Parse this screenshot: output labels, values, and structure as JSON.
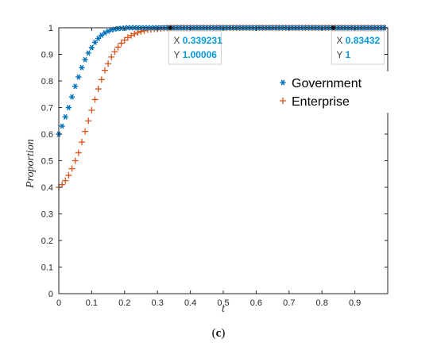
{
  "chart_data": {
    "type": "scatter",
    "xlabel": "t",
    "ylabel": "Proportion",
    "xlim": [
      0,
      1
    ],
    "ylim": [
      0,
      1
    ],
    "xticks": [
      "0",
      "0.1",
      "0.2",
      "0.3",
      "0.4",
      "0.5",
      "0.6",
      "0.7",
      "0.8",
      "0.9"
    ],
    "yticks": [
      "0",
      "0.1",
      "0.2",
      "0.3",
      "0.4",
      "0.5",
      "0.6",
      "0.7",
      "0.8",
      "0.9",
      "1"
    ],
    "grid": false,
    "legend_position": "top-right",
    "series": [
      {
        "name": "Government",
        "marker": "asterisk",
        "color": "#0072BD",
        "x": [
          0,
          0.01,
          0.02,
          0.03,
          0.04,
          0.05,
          0.06,
          0.07,
          0.08,
          0.09,
          0.1,
          0.11,
          0.12,
          0.13,
          0.14,
          0.15,
          0.16,
          0.17,
          0.18,
          0.19,
          0.2,
          0.21,
          0.22,
          0.23,
          0.24,
          0.25,
          0.26,
          0.27,
          0.28,
          0.29,
          0.3,
          0.31,
          0.32,
          0.33,
          0.34,
          0.35,
          0.36,
          0.37,
          0.38,
          0.39,
          0.4,
          0.41,
          0.42,
          0.43,
          0.44,
          0.45,
          0.46,
          0.47,
          0.48,
          0.49,
          0.5,
          0.51,
          0.52,
          0.53,
          0.54,
          0.55,
          0.56,
          0.57,
          0.58,
          0.59,
          0.6,
          0.61,
          0.62,
          0.63,
          0.64,
          0.65,
          0.66,
          0.67,
          0.68,
          0.69,
          0.7,
          0.71,
          0.72,
          0.73,
          0.74,
          0.75,
          0.76,
          0.77,
          0.78,
          0.79,
          0.8,
          0.81,
          0.82,
          0.83,
          0.84,
          0.85,
          0.86,
          0.87,
          0.88,
          0.89,
          0.9,
          0.91,
          0.92,
          0.93,
          0.94,
          0.95,
          0.96,
          0.97,
          0.98,
          0.99
        ],
        "y": [
          0.6,
          0.63,
          0.665,
          0.7,
          0.74,
          0.78,
          0.815,
          0.85,
          0.88,
          0.905,
          0.925,
          0.945,
          0.96,
          0.972,
          0.981,
          0.987,
          0.992,
          0.995,
          0.997,
          0.998,
          0.999,
          1,
          1,
          1,
          1,
          1,
          1,
          1,
          1,
          1,
          1,
          1,
          1,
          1,
          1,
          1,
          1,
          1,
          1,
          1,
          1,
          1,
          1,
          1,
          1,
          1,
          1,
          1,
          1,
          1,
          1,
          1,
          1,
          1,
          1,
          1,
          1,
          1,
          1,
          1,
          1,
          1,
          1,
          1,
          1,
          1,
          1,
          1,
          1,
          1,
          1,
          1,
          1,
          1,
          1,
          1,
          1,
          1,
          1,
          1,
          1,
          1,
          1,
          1,
          1,
          1,
          1,
          1,
          1,
          1,
          1,
          1,
          1,
          1,
          1,
          1,
          1,
          1,
          1,
          1
        ]
      },
      {
        "name": "Enterprise",
        "marker": "plus",
        "color": "#D95319",
        "x": [
          0,
          0.01,
          0.02,
          0.03,
          0.04,
          0.05,
          0.06,
          0.07,
          0.08,
          0.09,
          0.1,
          0.11,
          0.12,
          0.13,
          0.14,
          0.15,
          0.16,
          0.17,
          0.18,
          0.19,
          0.2,
          0.21,
          0.22,
          0.23,
          0.24,
          0.25,
          0.26,
          0.27,
          0.28,
          0.29,
          0.3,
          0.31,
          0.32,
          0.33,
          0.34,
          0.35,
          0.36,
          0.37,
          0.38,
          0.39,
          0.4,
          0.41,
          0.42,
          0.43,
          0.44,
          0.45,
          0.46,
          0.47,
          0.48,
          0.49,
          0.5,
          0.51,
          0.52,
          0.53,
          0.54,
          0.55,
          0.56,
          0.57,
          0.58,
          0.59,
          0.6,
          0.61,
          0.62,
          0.63,
          0.64,
          0.65,
          0.66,
          0.67,
          0.68,
          0.69,
          0.7,
          0.71,
          0.72,
          0.73,
          0.74,
          0.75,
          0.76,
          0.77,
          0.78,
          0.79,
          0.8,
          0.81,
          0.82,
          0.83,
          0.84,
          0.85,
          0.86,
          0.87,
          0.88,
          0.89,
          0.9,
          0.91,
          0.92,
          0.93,
          0.94,
          0.95,
          0.96,
          0.97,
          0.98,
          0.99
        ],
        "y": [
          0.4,
          0.41,
          0.425,
          0.445,
          0.47,
          0.5,
          0.53,
          0.57,
          0.61,
          0.65,
          0.69,
          0.73,
          0.77,
          0.805,
          0.84,
          0.865,
          0.89,
          0.91,
          0.927,
          0.942,
          0.954,
          0.963,
          0.971,
          0.977,
          0.982,
          0.986,
          0.989,
          0.992,
          0.994,
          0.995,
          0.996,
          0.997,
          0.998,
          0.999,
          1,
          1,
          1,
          1,
          1,
          1,
          1,
          1,
          1,
          1,
          1,
          1,
          1,
          1,
          1,
          1,
          1,
          1,
          1,
          1,
          1,
          1,
          1,
          1,
          1,
          1,
          1,
          1,
          1,
          1,
          1,
          1,
          1,
          1,
          1,
          1,
          1,
          1,
          1,
          1,
          1,
          1,
          1,
          1,
          1,
          1,
          1,
          1,
          1,
          1,
          1,
          1,
          1,
          1,
          1,
          1,
          1,
          1,
          1,
          1,
          1,
          1,
          1,
          1,
          1,
          1
        ]
      }
    ],
    "datatips": [
      {
        "x_label": "X",
        "x_value": "0.339231",
        "y_label": "Y",
        "y_value": "1.00006",
        "x": 0.339231,
        "y": 1
      },
      {
        "x_label": "X",
        "x_value": "0.83432",
        "y_label": "Y",
        "y_value": "1",
        "x": 0.83432,
        "y": 1
      }
    ]
  },
  "caption": {
    "open": "(",
    "label": "c",
    "close": ")"
  }
}
